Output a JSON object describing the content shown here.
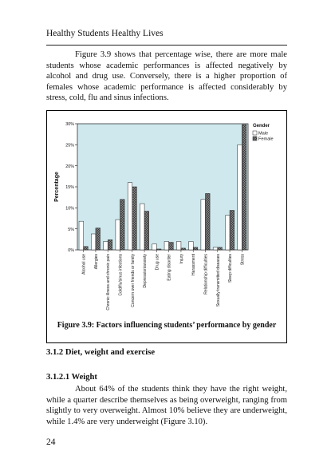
{
  "running_head": "Healthy Students Healthy Lives",
  "paragraph1": "Figure 3.9 shows that percentage wise, there are more male students whose academic performances is affected negatively by alcohol and drug use. Conversely, there is a higher proportion of females whose academic performance is affected considerably by stress, cold, flu and sinus infections.",
  "figure_caption": "Figure 3.9: Factors influencing students’ performance by gender",
  "heading_section": "3.1.2 Diet, weight and exercise",
  "heading_subsection": "3.1.2.1 Weight",
  "paragraph2": "About 64% of the students think they have the right weight, while a quarter describe themselves as being overweight, ranging from slightly to very overweight. Almost 10% believe they are underweight, while 1.4% are very underweight (Figure 3.10).",
  "page_number": "24",
  "colors": {
    "plot_bg": "#cfe8ee",
    "male_fill": "#ffffff",
    "female_fill": "#6b6b6b"
  },
  "chart_data": {
    "type": "bar",
    "ylabel": "Percentage",
    "ylim": [
      0,
      30
    ],
    "yticks": [
      0,
      5,
      10,
      15,
      20,
      25,
      30
    ],
    "ytick_suffix": "%",
    "legend_title": "Gender",
    "legend_placement": "top-right",
    "grid": false,
    "categories": [
      "Alcohol use",
      "Allergies",
      "Chronic illness and chronic pain",
      "Cold/flu/sinus infections",
      "Concern over friends or family",
      "Depression/anxiety",
      "Drug use",
      "Eating disorder",
      "Injury",
      "Harassment",
      "Relationship difficulties",
      "Sexually transmitted diseases",
      "Sleep difficulties",
      "Stress"
    ],
    "series": [
      {
        "name": "Male",
        "values": [
          6.8,
          3.8,
          2.0,
          7.2,
          16.0,
          11.0,
          1.4,
          2.0,
          2.0,
          2.0,
          12.0,
          0.6,
          8.2,
          25.0
        ]
      },
      {
        "name": "Female",
        "values": [
          0.8,
          5.2,
          2.4,
          12.0,
          15.0,
          9.2,
          0.2,
          1.8,
          0.4,
          0.6,
          13.4,
          0.6,
          9.4,
          29.8
        ]
      }
    ]
  }
}
